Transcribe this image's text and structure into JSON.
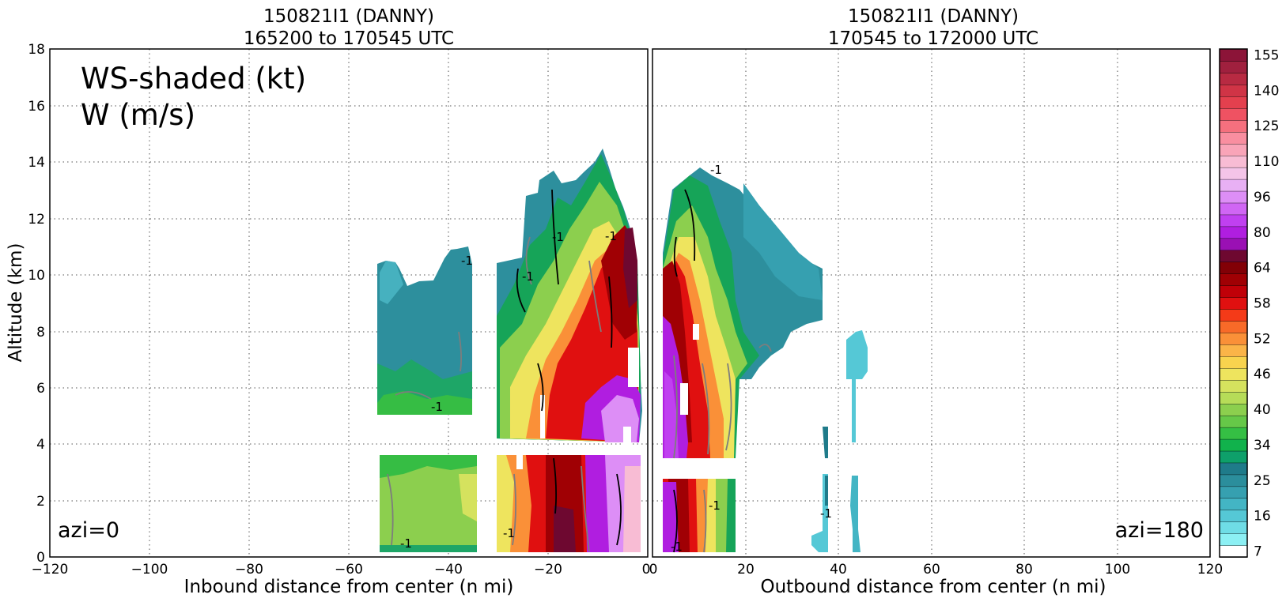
{
  "chart_data": [
    {
      "type": "heatmap",
      "title": "150821I1 (DANNY)",
      "subtitle": "165200 to 170545 UTC",
      "xlabel": "Inbound distance from center (n mi)",
      "ylabel": "Altitude (km)",
      "xlim": [
        -120,
        0
      ],
      "ylim": [
        0,
        18
      ],
      "x_ticks": [
        "−120",
        "−100",
        "−80",
        "−60",
        "−40",
        "−20",
        "0"
      ],
      "y_ticks": [
        "0",
        "2",
        "4",
        "6",
        "8",
        "10",
        "12",
        "14",
        "16",
        "18"
      ],
      "grid": true,
      "annotations": [
        "WS-shaded (kt)",
        "W (m/s)",
        "azi=0"
      ],
      "contour_labels": [
        "-1"
      ],
      "wind_speed_regions": [
        {
          "x": [
            -54,
            -35
          ],
          "y": [
            4.2,
            10.8
          ],
          "ws_kt": 22
        },
        {
          "x": [
            -54,
            -35
          ],
          "y": [
            0.2,
            3.6
          ],
          "ws_kt": 40
        },
        {
          "x": [
            -30,
            -4
          ],
          "y": [
            4.0,
            13.5
          ],
          "ws_kt": 40
        },
        {
          "x": [
            -20,
            -6
          ],
          "y": [
            4.0,
            13.5
          ],
          "ws_kt": 54
        },
        {
          "x": [
            -30,
            -4
          ],
          "y": [
            0.2,
            3.5
          ],
          "ws_kt": 52
        },
        {
          "x": [
            -14,
            -4
          ],
          "y": [
            0.2,
            6.0
          ],
          "ws_kt": 80
        }
      ]
    },
    {
      "type": "heatmap",
      "title": "150821I1 (DANNY)",
      "subtitle": "170545 to 172000 UTC",
      "xlabel": "Outbound distance from center (n mi)",
      "ylim": [
        0,
        18
      ],
      "xlim": [
        0,
        120
      ],
      "x_ticks": [
        "0",
        "20",
        "40",
        "60",
        "80",
        "100",
        "120"
      ],
      "grid": true,
      "annotations": [
        "azi=180"
      ],
      "contour_labels": [
        "-1"
      ],
      "wind_speed_regions": [
        {
          "x": [
            2,
            17
          ],
          "y": [
            3.5,
            12.5
          ],
          "ws_kt": 50
        },
        {
          "x": [
            2,
            8
          ],
          "y": [
            0.2,
            9.0
          ],
          "ws_kt": 80
        },
        {
          "x": [
            12,
            40
          ],
          "y": [
            6.5,
            12.5
          ],
          "ws_kt": 25
        },
        {
          "x": [
            2,
            17
          ],
          "y": [
            0.2,
            2.8
          ],
          "ws_kt": 52
        },
        {
          "x": [
            43,
            48
          ],
          "y": [
            0.2,
            8.0
          ],
          "ws_kt": 20
        },
        {
          "x": [
            34,
            37
          ],
          "y": [
            0.2,
            4.5
          ],
          "ws_kt": 20
        }
      ]
    }
  ],
  "colorbar": {
    "tick_labels": [
      "7",
      "16",
      "25",
      "34",
      "40",
      "46",
      "52",
      "58",
      "64",
      "80",
      "96",
      "110",
      "125",
      "140",
      "155"
    ],
    "colors": [
      "#ffffff",
      "#8cf0f4",
      "#6fdde6",
      "#55c8d6",
      "#43b5c4",
      "#36a0b0",
      "#2b8e9c",
      "#1f7b8a",
      "#0ea06a",
      "#11b24c",
      "#35bf44",
      "#66c848",
      "#8ccf4e",
      "#b6dc58",
      "#d5e25e",
      "#eee45e",
      "#f8d34e",
      "#fbb448",
      "#fa9038",
      "#f86a28",
      "#f43a18",
      "#e01010",
      "#c00008",
      "#a00004",
      "#820006",
      "#6e0830",
      "#9a10b4",
      "#b01ee0",
      "#c040f0",
      "#d066f4",
      "#dd8ef6",
      "#e8b0f4",
      "#f4c4e8",
      "#f8bcd4",
      "#f9a4b8",
      "#f98ea0",
      "#f5707e",
      "#ef5262",
      "#e4404e",
      "#d03446",
      "#b82a42",
      "#a0203e",
      "#8c1438"
    ]
  }
}
